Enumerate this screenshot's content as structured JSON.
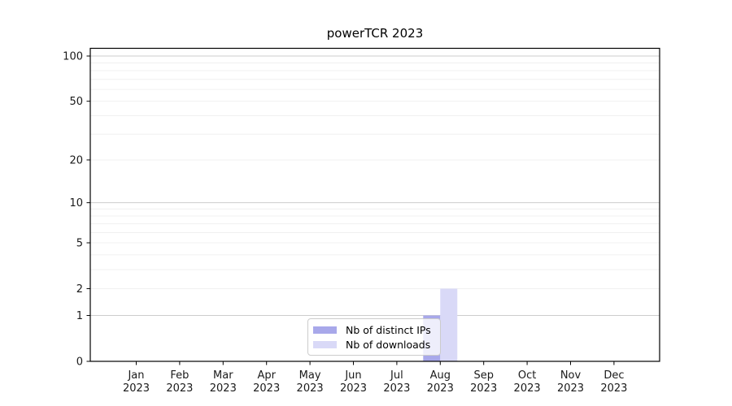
{
  "chart_data": {
    "type": "bar",
    "title": "powerTCR 2023",
    "y_scale": "log10(1+y)",
    "categories": [
      "Jan",
      "Feb",
      "Mar",
      "Apr",
      "May",
      "Jun",
      "Jul",
      "Aug",
      "Sep",
      "Oct",
      "Nov",
      "Dec"
    ],
    "category_year": "2023",
    "series": [
      {
        "name": "Nb of distinct IPs",
        "color": "#a8a8ea",
        "values": [
          0,
          0,
          0,
          0,
          0,
          0,
          0,
          1,
          0,
          0,
          0,
          0
        ]
      },
      {
        "name": "Nb of downloads",
        "color": "#d9d9f7",
        "values": [
          0,
          0,
          0,
          0,
          0,
          0,
          0,
          2,
          0,
          0,
          0,
          0
        ]
      }
    ],
    "y_ticks": [
      0,
      1,
      2,
      5,
      10,
      20,
      50,
      100
    ],
    "major_gridlines": [
      1,
      10,
      100
    ],
    "minor_gridlines": [
      2,
      3,
      4,
      5,
      6,
      7,
      8,
      9,
      20,
      30,
      40,
      50,
      60,
      70,
      80,
      90
    ],
    "ylim": [
      0,
      113
    ],
    "grid": true,
    "legend_position": "bottom-center"
  },
  "style": {
    "major_grid_color": "#cdcdcd",
    "minor_grid_color": "#f0f0f0",
    "axis_color": "#000000",
    "tick_label_color": "#1a1a1a",
    "legend_border_color": "#cccccc"
  }
}
